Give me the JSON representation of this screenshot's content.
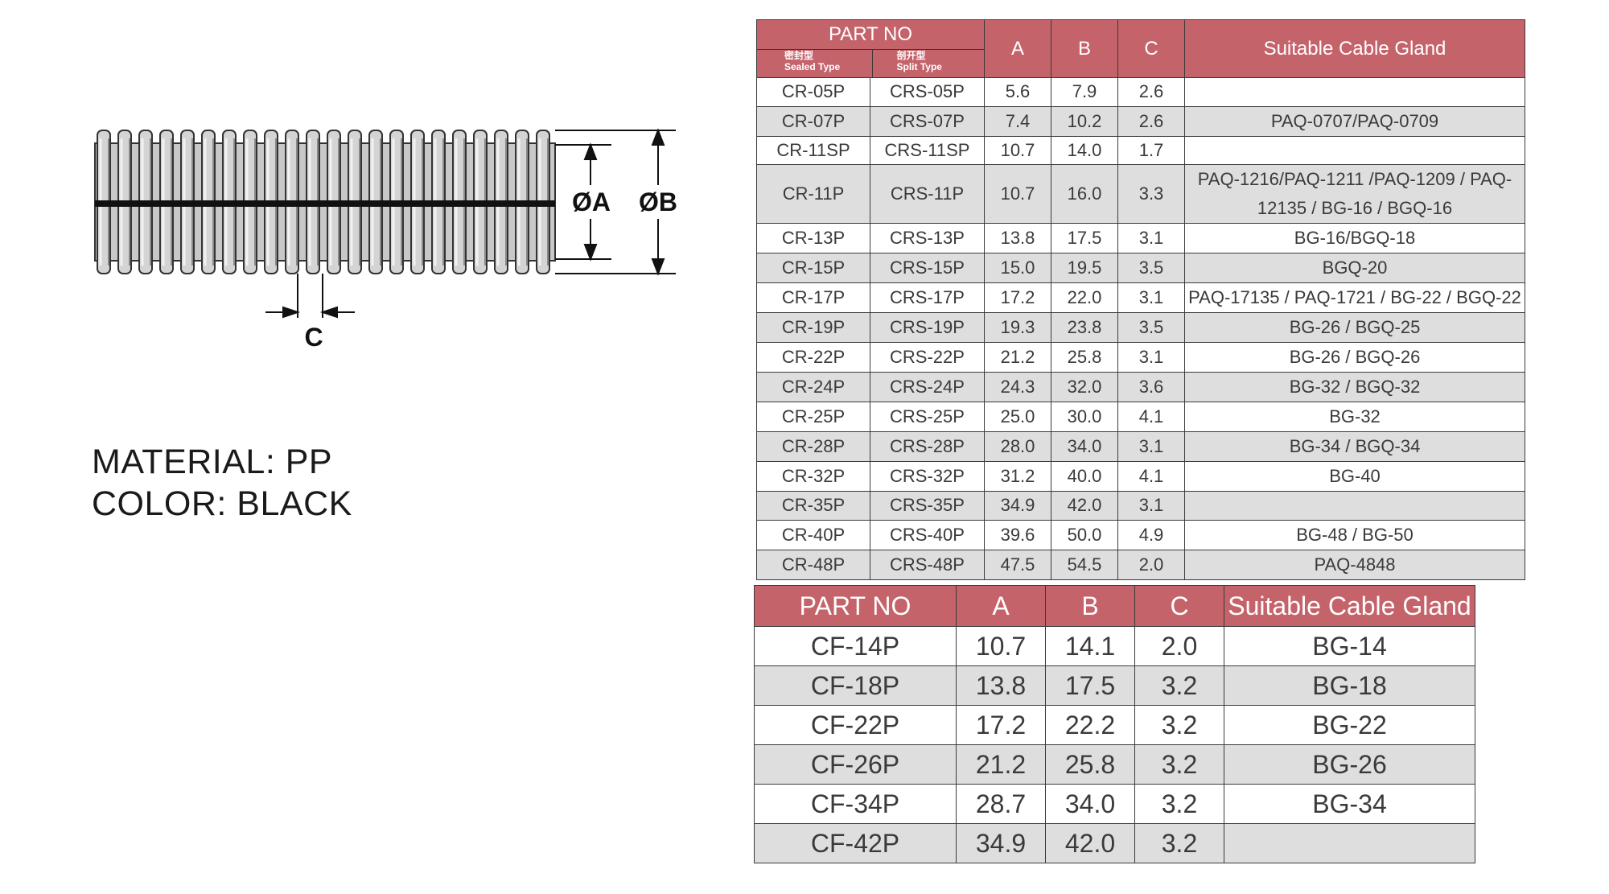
{
  "drawing": {
    "label_a": "ØA",
    "label_b": "ØB",
    "label_c": "C"
  },
  "material": {
    "material_line": "MATERIAL: PP",
    "color_line": "COLOR: BLACK"
  },
  "colors": {
    "header_bg": "#c5636b",
    "row_alt": "#dedede",
    "border": "#3a3a3a"
  },
  "table1": {
    "headers": {
      "part_no": "PART NO",
      "sealed_cn": "密封型",
      "sealed_en": "Sealed Type",
      "split_cn": "剖开型",
      "split_en": "Split Type",
      "a": "A",
      "b": "B",
      "c": "C",
      "gland": "Suitable Cable Gland"
    },
    "rows": [
      [
        "CR-05P",
        "CRS-05P",
        "5.6",
        "7.9",
        "2.6",
        ""
      ],
      [
        "CR-07P",
        "CRS-07P",
        "7.4",
        "10.2",
        "2.6",
        "PAQ-0707/PAQ-0709"
      ],
      [
        "CR-11SP",
        "CRS-11SP",
        "10.7",
        "14.0",
        "1.7",
        ""
      ],
      [
        "CR-11P",
        "CRS-11P",
        "10.7",
        "16.0",
        "3.3",
        "PAQ-1216/PAQ-1211 /PAQ-1209 / PAQ-12135 / BG-16 / BGQ-16"
      ],
      [
        "CR-13P",
        "CRS-13P",
        "13.8",
        "17.5",
        "3.1",
        "BG-16/BGQ-18"
      ],
      [
        "CR-15P",
        "CRS-15P",
        "15.0",
        "19.5",
        "3.5",
        "BGQ-20"
      ],
      [
        "CR-17P",
        "CRS-17P",
        "17.2",
        "22.0",
        "3.1",
        "PAQ-17135 / PAQ-1721 / BG-22 / BGQ-22"
      ],
      [
        "CR-19P",
        "CRS-19P",
        "19.3",
        "23.8",
        "3.5",
        "BG-26 / BGQ-25"
      ],
      [
        "CR-22P",
        "CRS-22P",
        "21.2",
        "25.8",
        "3.1",
        "BG-26 / BGQ-26"
      ],
      [
        "CR-24P",
        "CRS-24P",
        "24.3",
        "32.0",
        "3.6",
        "BG-32 / BGQ-32"
      ],
      [
        "CR-25P",
        "CRS-25P",
        "25.0",
        "30.0",
        "4.1",
        "BG-32"
      ],
      [
        "CR-28P",
        "CRS-28P",
        "28.0",
        "34.0",
        "3.1",
        "BG-34 / BGQ-34"
      ],
      [
        "CR-32P",
        "CRS-32P",
        "31.2",
        "40.0",
        "4.1",
        "BG-40"
      ],
      [
        "CR-35P",
        "CRS-35P",
        "34.9",
        "42.0",
        "3.1",
        ""
      ],
      [
        "CR-40P",
        "CRS-40P",
        "39.6",
        "50.0",
        "4.9",
        "BG-48 / BG-50"
      ],
      [
        "CR-48P",
        "CRS-48P",
        "47.5",
        "54.5",
        "2.0",
        "PAQ-4848"
      ]
    ]
  },
  "table2": {
    "headers": {
      "part_no": "PART NO",
      "a": "A",
      "b": "B",
      "c": "C",
      "gland": "Suitable Cable Gland"
    },
    "rows": [
      [
        "CF-14P",
        "10.7",
        "14.1",
        "2.0",
        "BG-14"
      ],
      [
        "CF-18P",
        "13.8",
        "17.5",
        "3.2",
        "BG-18"
      ],
      [
        "CF-22P",
        "17.2",
        "22.2",
        "3.2",
        "BG-22"
      ],
      [
        "CF-26P",
        "21.2",
        "25.8",
        "3.2",
        "BG-26"
      ],
      [
        "CF-34P",
        "28.7",
        "34.0",
        "3.2",
        "BG-34"
      ],
      [
        "CF-42P",
        "34.9",
        "42.0",
        "3.2",
        ""
      ]
    ]
  }
}
